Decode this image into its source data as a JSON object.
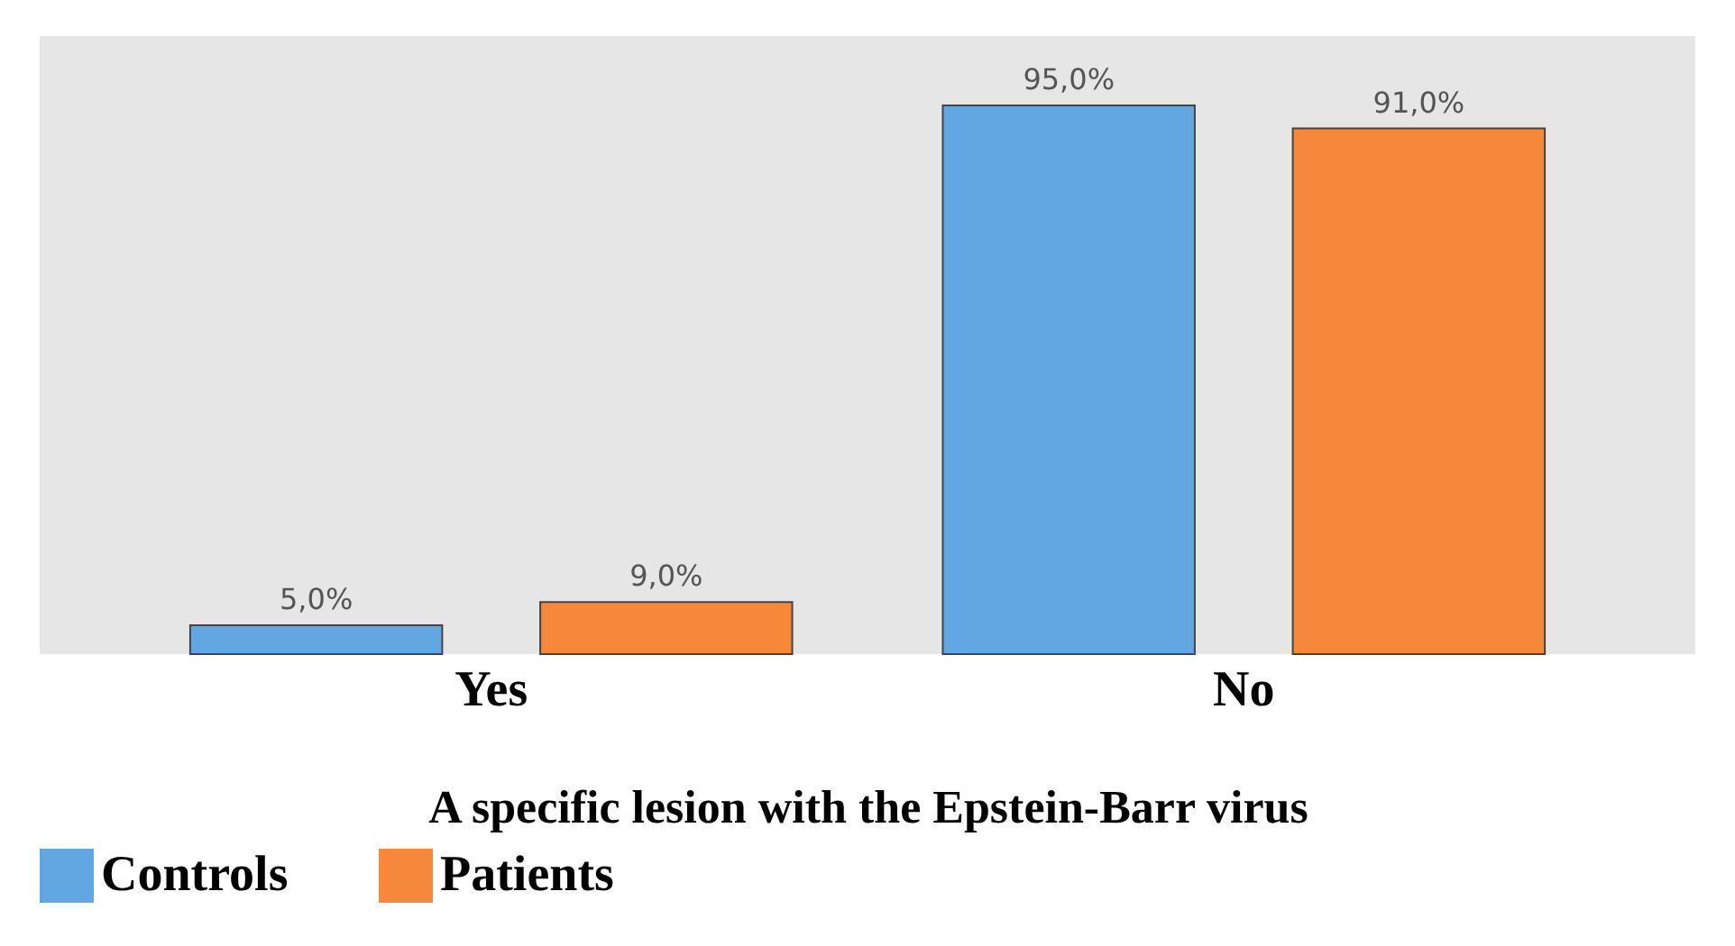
{
  "chart_data": {
    "type": "bar",
    "xlabel": "A specific lesion with the Epstein-Barr virus",
    "categories": [
      "Yes",
      "No"
    ],
    "series": [
      {
        "name": "Controls",
        "color": "#62a6e2",
        "values": [
          5,
          95
        ],
        "value_labels": [
          "5,0%",
          "95,0%"
        ]
      },
      {
        "name": "Patients",
        "color": "#f5883a",
        "values": [
          9,
          91
        ],
        "value_labels": [
          "9,0%",
          "91,0%"
        ]
      }
    ],
    "ylim": [
      0,
      107
    ],
    "tick_labels": "x",
    "grid": false,
    "legend": "bottom"
  }
}
